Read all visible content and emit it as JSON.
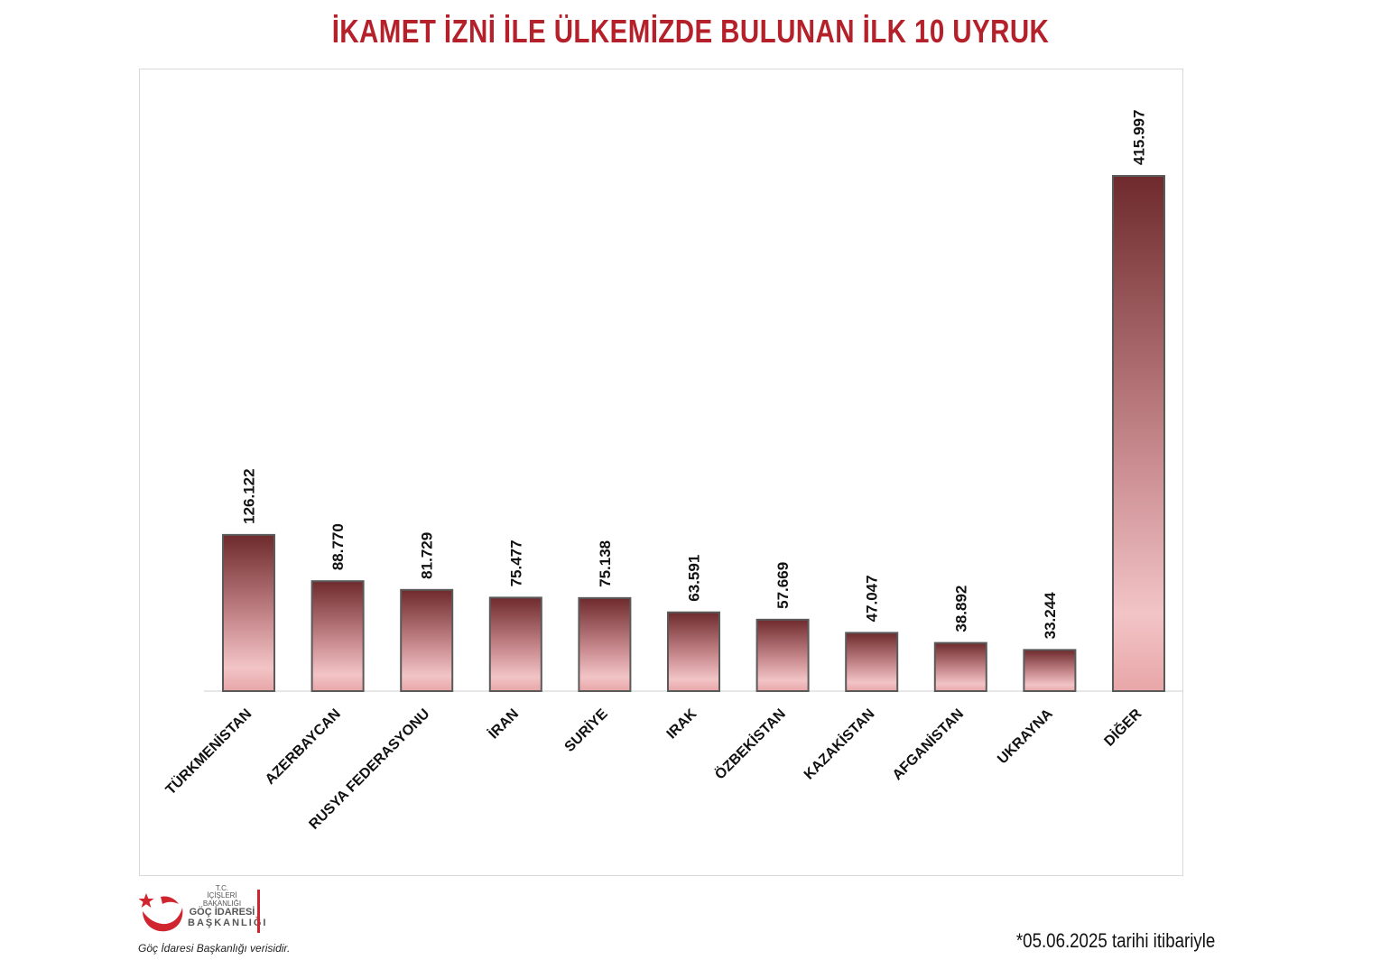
{
  "title": "İKAMET İZNİ İLE ÜLKEMİZDE BULUNAN İLK 10 UYRUK",
  "logo": {
    "line1": "T.C.",
    "line2": "İÇİŞLERİ BAKANLIĞI",
    "line3": "GÖÇ İDARESİ",
    "line4": "BAŞKANLIĞI"
  },
  "source_note": "Göç İdaresi Başkanlığı verisidir.",
  "date_note": "*05.06.2025 tarihi itibariyle",
  "colors": {
    "title": "#b5212b",
    "bar_top": "#6e2a2c",
    "bar_mid": "#c98b8f",
    "bar_bottom": "#f2c4c6",
    "logo_red": "#d0242f"
  },
  "chart_data": {
    "type": "bar",
    "title": "İKAMET İZNİ İLE ÜLKEMİZDE BULUNAN İLK 10 UYRUK",
    "categories": [
      "TÜRKMENİSTAN",
      "AZERBAYCAN",
      "RUSYA FEDERASYONU",
      "İRAN",
      "SURİYE",
      "IRAK",
      "ÖZBEKİSTAN",
      "KAZAKİSTAN",
      "AFGANİSTAN",
      "UKRAYNA",
      "DİĞER"
    ],
    "values": [
      126122,
      88770,
      81729,
      75477,
      75138,
      63591,
      57669,
      47047,
      38892,
      33244,
      415997
    ],
    "value_labels": [
      "126.122",
      "88.770",
      "81.729",
      "75.477",
      "75.138",
      "63.591",
      "57.669",
      "47.047",
      "38.892",
      "33.244",
      "415.997"
    ],
    "xlabel": "",
    "ylabel": "",
    "ylim": [
      0,
      415997
    ],
    "grid": false,
    "legend": "none"
  }
}
